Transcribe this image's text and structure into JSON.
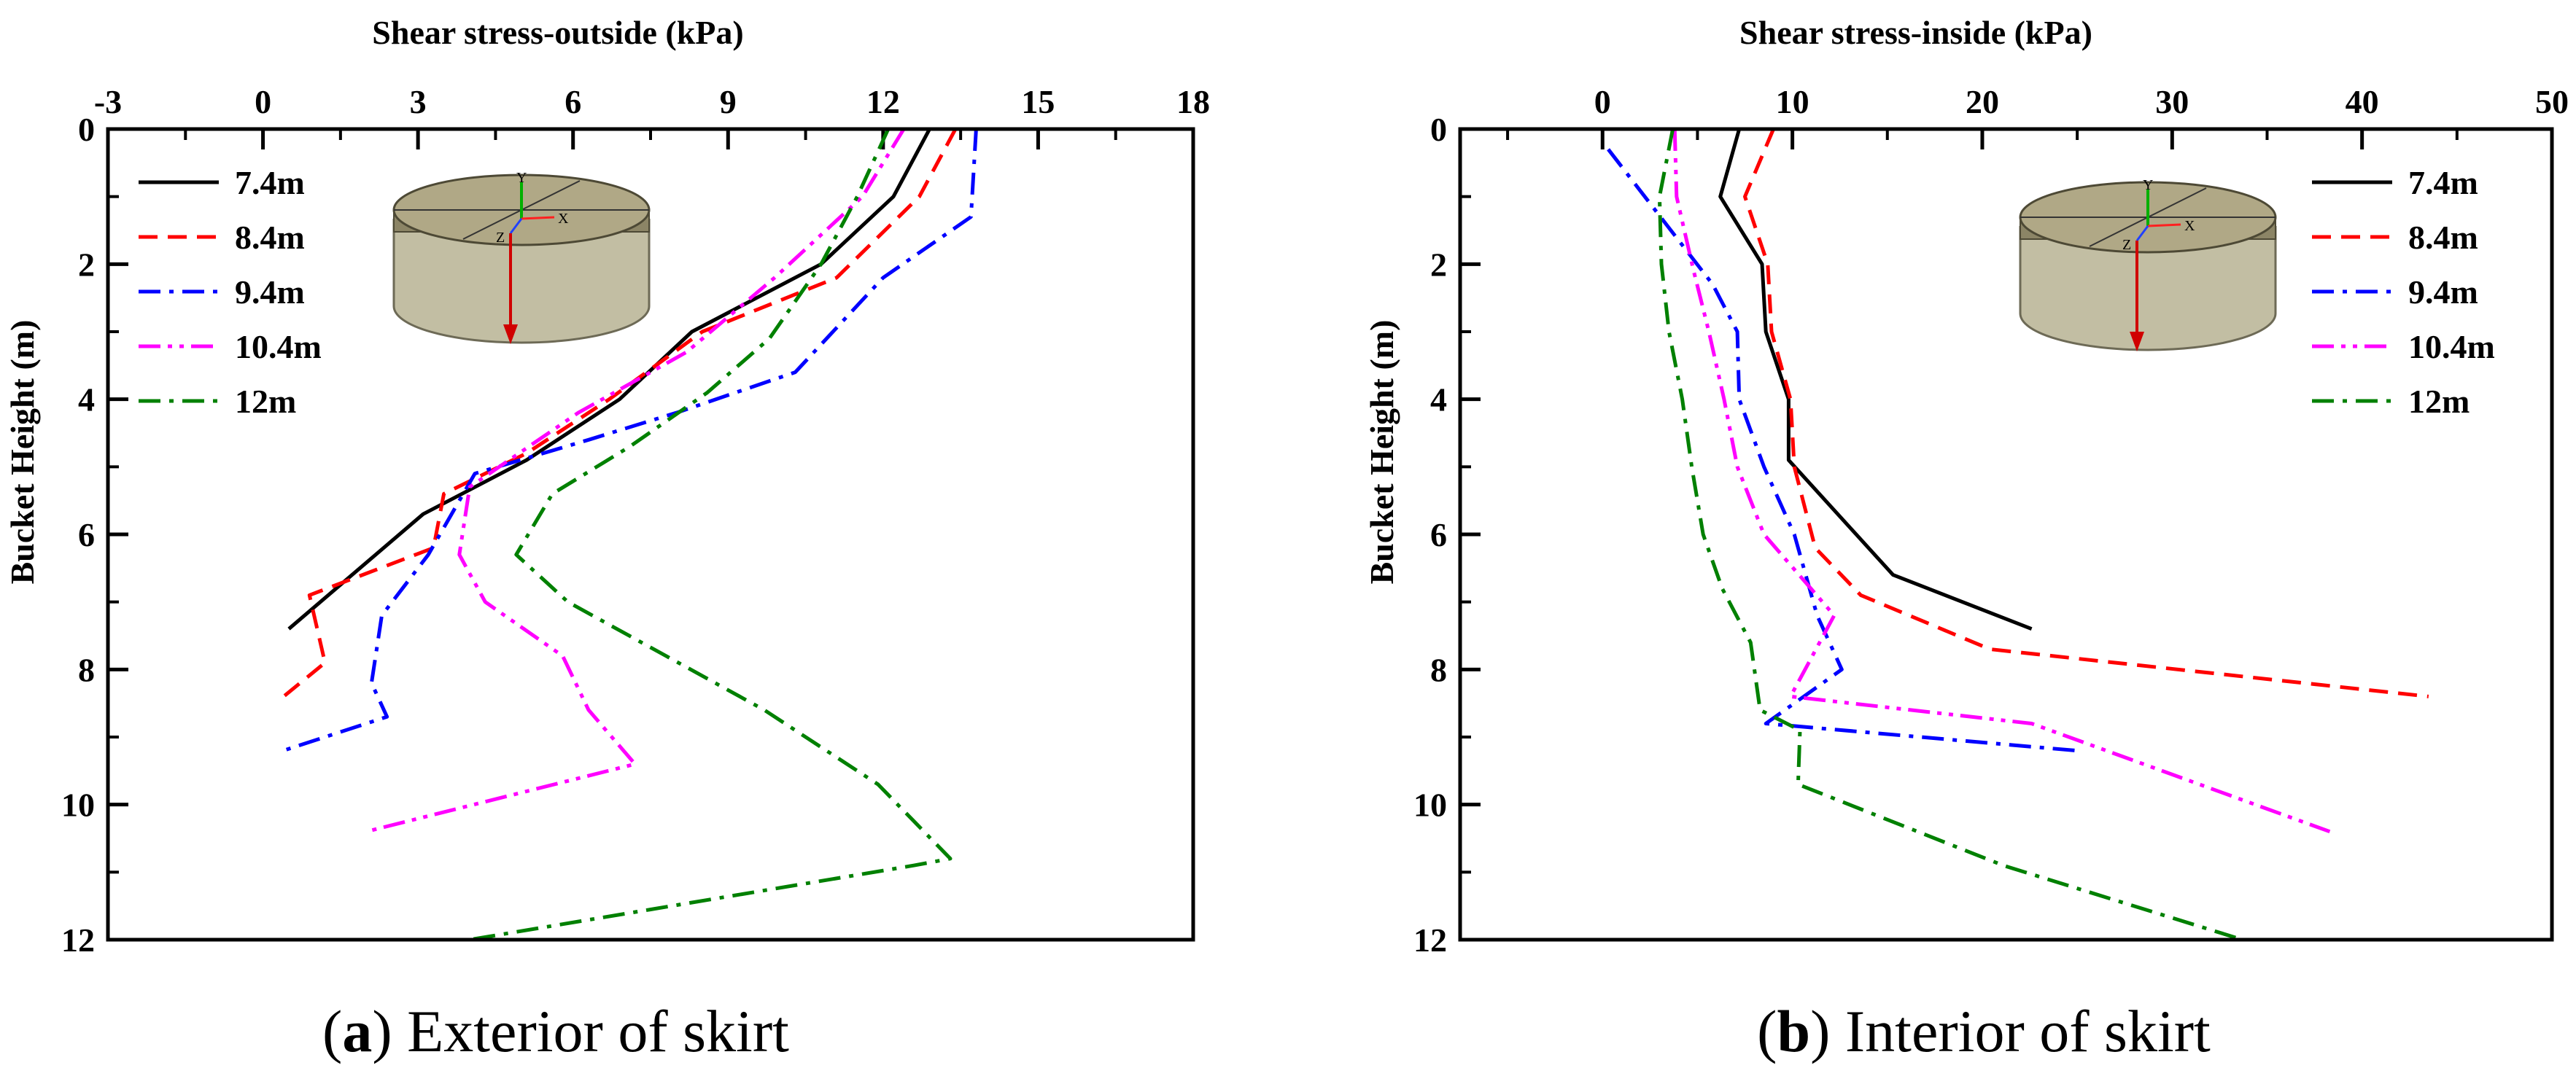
{
  "colors": {
    "7.4m": "#000000",
    "8.4m": "#ff0000",
    "9.4m": "#0000ff",
    "10.4m": "#ff00ff",
    "12m": "#008000",
    "axis": "#000000",
    "cylinder_body": "#bcb89a",
    "cylinder_top": "#b0a886"
  },
  "icons": {
    "bucket_model": "cylinder-bucket-icon"
  },
  "chart_data": [
    {
      "type": "line",
      "panel": "a",
      "caption_letter": "a",
      "caption_text": " Exterior of skirt",
      "caption_open": "(",
      "caption_close": ")",
      "xlabel": "Shear stress-outside (kPa)",
      "ylabel": "Bucket Height (m)",
      "xlim": [
        -3,
        18
      ],
      "ylim": [
        0,
        12
      ],
      "y_inverted": true,
      "x_axis_position": "top",
      "xticks": [
        -3,
        0,
        3,
        6,
        9,
        12,
        15,
        18
      ],
      "xtick_labels": [
        "-3",
        "0",
        "3",
        "6",
        "9",
        "12",
        "15",
        "18"
      ],
      "yticks": [
        0,
        2,
        4,
        6,
        8,
        10,
        12
      ],
      "ytick_labels": [
        "0",
        "2",
        "4",
        "6",
        "8",
        "10",
        "12"
      ],
      "legend_position": "top-left",
      "series": [
        {
          "name": "7.4m",
          "style": "solid",
          "x": [
            12.9,
            12.2,
            10.8,
            8.3,
            6.9,
            5.1,
            3.1,
            0.5
          ],
          "y": [
            0,
            1.0,
            2.0,
            3.0,
            4.0,
            4.9,
            5.7,
            7.4
          ]
        },
        {
          "name": "8.4m",
          "style": "dash",
          "x": [
            13.4,
            12.7,
            11.1,
            8.5,
            6.7,
            5.1,
            3.5,
            3.3,
            0.9,
            1.2,
            0.4
          ],
          "y": [
            0,
            1.0,
            2.2,
            3.0,
            4.0,
            4.8,
            5.4,
            6.2,
            6.9,
            7.9,
            8.4
          ]
        },
        {
          "name": "9.4m",
          "style": "dashdot",
          "x": [
            13.8,
            13.7,
            12.0,
            10.3,
            8.0,
            6.3,
            4.1,
            3.2,
            2.3,
            2.1,
            2.4,
            0.4
          ],
          "y": [
            0,
            1.3,
            2.2,
            3.6,
            4.2,
            4.6,
            5.1,
            6.3,
            7.2,
            8.2,
            8.7,
            9.2
          ]
        },
        {
          "name": "10.4m",
          "style": "dashdotdot",
          "x": [
            12.4,
            11.6,
            9.9,
            8.2,
            6.1,
            4.0,
            3.8,
            4.3,
            5.8,
            6.3,
            7.2,
            2.0
          ],
          "y": [
            0,
            1.0,
            2.2,
            3.3,
            4.2,
            5.3,
            6.3,
            7.0,
            7.8,
            8.6,
            9.4,
            10.4
          ]
        },
        {
          "name": "12m",
          "style": "dashdot",
          "x": [
            12.1,
            11.5,
            10.8,
            9.8,
            8.6,
            7.1,
            5.6,
            4.9,
            5.9,
            7.8,
            9.7,
            11.9,
            13.3,
            12.6,
            4.0
          ],
          "y": [
            0,
            1.0,
            2.0,
            3.1,
            3.9,
            4.7,
            5.4,
            6.3,
            7.0,
            7.8,
            8.6,
            9.7,
            10.8,
            10.9,
            12.0
          ]
        }
      ]
    },
    {
      "type": "line",
      "panel": "b",
      "caption_letter": "b",
      "caption_text": " Interior of skirt",
      "caption_open": "(",
      "caption_close": ")",
      "xlabel": "Shear stress-inside (kPa)",
      "ylabel": "Bucket Height (m)",
      "xlim": [
        -7.5,
        50
      ],
      "ylim": [
        0,
        12
      ],
      "y_inverted": true,
      "x_axis_position": "top",
      "xticks": [
        0,
        10,
        20,
        30,
        40,
        50
      ],
      "xtick_labels": [
        "0",
        "10",
        "20",
        "30",
        "40",
        "50"
      ],
      "yticks": [
        0,
        2,
        4,
        6,
        8,
        10,
        12
      ],
      "ytick_labels": [
        "0",
        "2",
        "4",
        "6",
        "8",
        "10",
        "12"
      ],
      "legend_position": "top-right",
      "series": [
        {
          "name": "7.4m",
          "style": "solid",
          "x": [
            7.2,
            6.2,
            8.4,
            8.6,
            9.8,
            9.8,
            15.3,
            22.6
          ],
          "y": [
            0,
            1.0,
            2.0,
            3.0,
            4.0,
            4.9,
            6.6,
            7.4
          ]
        },
        {
          "name": "8.4m",
          "style": "dash",
          "x": [
            9.0,
            7.5,
            8.7,
            8.9,
            9.9,
            10.1,
            11.2,
            13.6,
            20.4,
            43.5
          ],
          "y": [
            0,
            1.0,
            2.0,
            3.0,
            4.0,
            5.0,
            6.2,
            6.9,
            7.7,
            8.4
          ]
        },
        {
          "name": "9.4m",
          "style": "dashdot",
          "x": [
            0.3,
            2.5,
            5.8,
            7.1,
            7.2,
            8.5,
            10.1,
            11.3,
            12.6,
            8.6,
            24.9
          ],
          "y": [
            0.3,
            1.1,
            2.3,
            3.0,
            4.0,
            5.0,
            6.0,
            7.2,
            8.0,
            8.8,
            9.2
          ]
        },
        {
          "name": "10.4m",
          "style": "dashdotdot",
          "x": [
            3.8,
            3.9,
            4.8,
            5.6,
            6.4,
            7.1,
            8.5,
            12.2,
            9.9,
            22.6,
            38.3
          ],
          "y": [
            0,
            1.0,
            2.1,
            3.0,
            4.0,
            5.0,
            6.0,
            7.2,
            8.4,
            8.8,
            10.4
          ]
        },
        {
          "name": "12m",
          "style": "dashdot",
          "x": [
            3.7,
            3.0,
            3.1,
            3.5,
            4.2,
            4.7,
            5.3,
            6.3,
            7.8,
            8.3,
            10.4,
            10.3,
            21.1,
            33.7
          ],
          "y": [
            0,
            1.0,
            2.0,
            3.0,
            4.0,
            5.0,
            6.0,
            6.8,
            7.6,
            8.6,
            8.9,
            9.7,
            10.9,
            12.0
          ]
        }
      ]
    }
  ]
}
